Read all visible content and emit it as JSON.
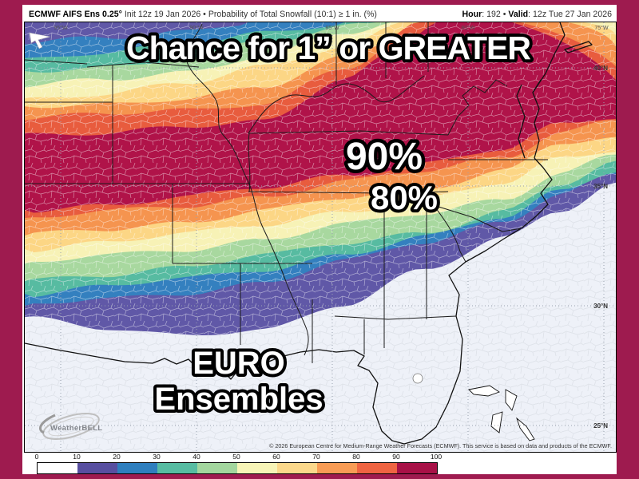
{
  "header": {
    "brand": "ECMWF AIFS Ens 0.25°",
    "subtitle": " Init 12z 19 Jan 2026 • Probability of Total Snowfall (10:1) ≥ 1 in. (%)",
    "hour_label": "Hour",
    "hour_value": ": 192 • ",
    "valid_label": "Valid",
    "valid_value": ": 12z Tue 27 Jan 2026"
  },
  "overlays": {
    "title": "Chance for 1” or GREATER",
    "high_label": "90%",
    "low_label": "80%",
    "euro_line1": "EURO",
    "euro_line2": "Ensembles"
  },
  "map": {
    "lat_labels": [
      "40°N",
      "35°N",
      "30°N",
      "25°N"
    ],
    "lon_labels": [
      "95°W",
      "90°W",
      "85°W",
      "80°W",
      "75°W"
    ],
    "watermark": "WeatherBELL",
    "base_color": "#eef1f8",
    "band_colors": [
      "#6058a7",
      "#3480bf",
      "#57bba1",
      "#a8d89f",
      "#f7f2b6",
      "#fcd685",
      "#f5944f",
      "#e85c3e",
      "#b01349"
    ]
  },
  "legend": {
    "ticks": [
      "0",
      "10",
      "20",
      "30",
      "40",
      "50",
      "60",
      "70",
      "80",
      "90",
      "100"
    ],
    "colors": [
      "#ffffff",
      "#584fa0",
      "#2f7fbe",
      "#57bca2",
      "#a3d69e",
      "#f7f4b7",
      "#fbd88b",
      "#f89c55",
      "#ef6442",
      "#a81147"
    ]
  },
  "footer": {
    "copyright": "© 2026 European Centre for Medium-Range Weather Forecasts (ECMWF). This service is based on data and products of the ECMWF."
  },
  "frame_color": "#9e1b4f",
  "chart_data": {
    "type": "heatmap",
    "title": "Probability of Total Snowfall (10:1) ≥ 1 in. (%)",
    "legend_values": [
      0,
      10,
      20,
      30,
      40,
      50,
      60,
      70,
      80,
      90,
      100
    ],
    "notes": "Filled probability contours: 90-100% swath from Arkansas across Tennessee/Kentucky into Virginia; 80% contour just south of it; values decrease southward in bands to 0 along the Gulf Coast and Florida, and decrease northwestward over Missouri/Iowa."
  }
}
